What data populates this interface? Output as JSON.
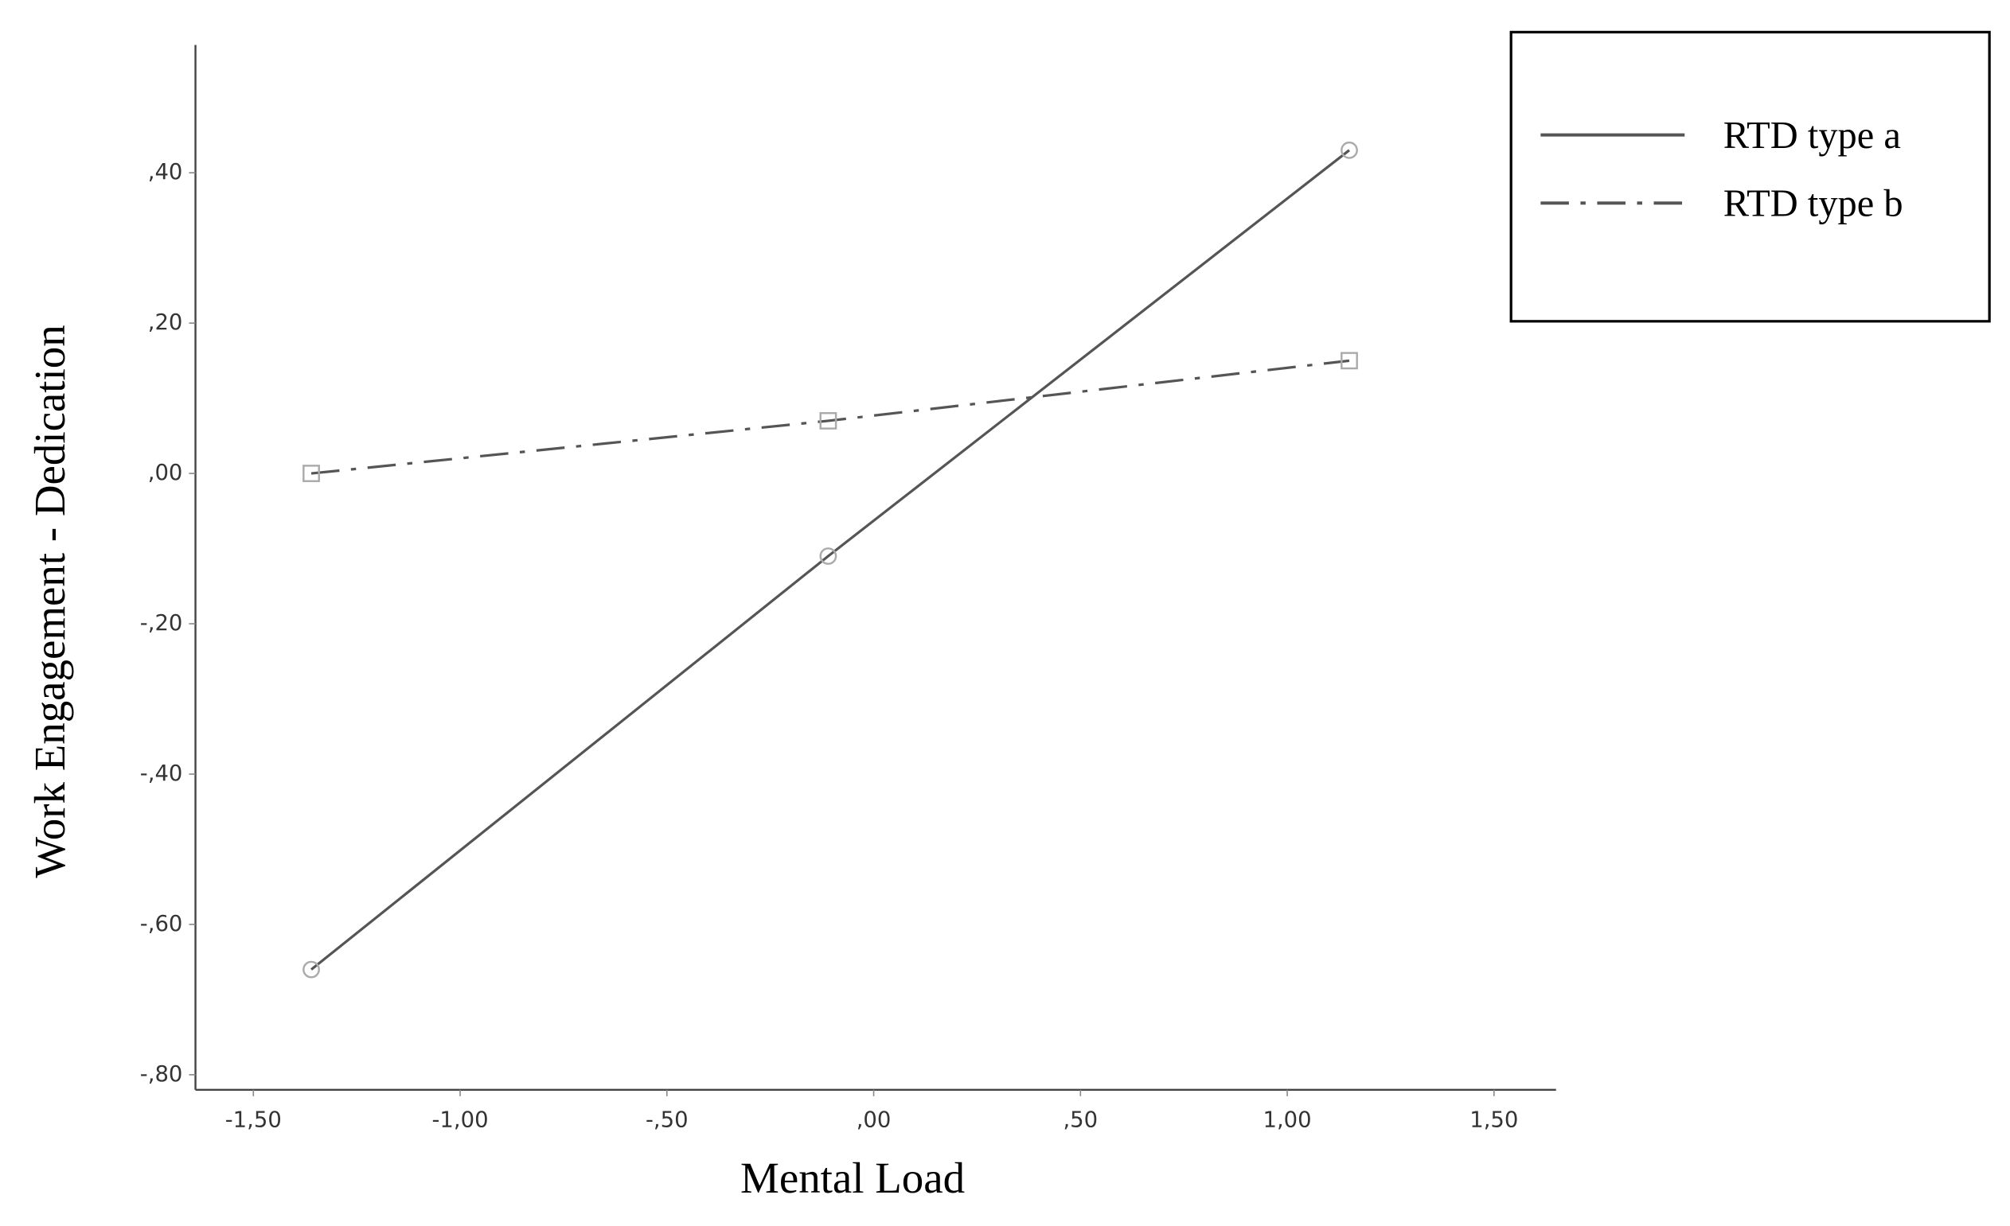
{
  "chart_data": {
    "type": "line",
    "x_label": "Mental Load",
    "y_label": "Work Engagement - Dedication",
    "x": [
      -1.36,
      -0.11,
      1.15
    ],
    "series": [
      {
        "name": "RTD type a",
        "color": "#555555",
        "style": "solid",
        "marker": "circle",
        "values": [
          -0.66,
          -0.11,
          0.43
        ]
      },
      {
        "name": "RTD type b",
        "color": "#555555",
        "style": "dashdot",
        "marker": "square",
        "values": [
          0.0,
          0.07,
          0.15
        ]
      }
    ],
    "xlim": [
      -1.64,
      1.65
    ],
    "ylim": [
      -0.82,
      0.57
    ],
    "xticks": [
      {
        "value": -1.5,
        "label": "-1,50"
      },
      {
        "value": -1.0,
        "label": "-1,00"
      },
      {
        "value": -0.5,
        "label": "-,50"
      },
      {
        "value": 0,
        "label": ",00"
      },
      {
        "value": 0.5,
        "label": ",50"
      },
      {
        "value": 1.0,
        "label": "1,00"
      },
      {
        "value": 1.5,
        "label": "1,50"
      }
    ],
    "yticks": [
      {
        "value": -0.8,
        "label": "-,80"
      },
      {
        "value": -0.6,
        "label": "-,60"
      },
      {
        "value": -0.4,
        "label": "-,40"
      },
      {
        "value": -0.2,
        "label": "-,20"
      },
      {
        "value": 0,
        "label": ",00"
      },
      {
        "value": 0.2,
        "label": ",20"
      },
      {
        "value": 0.4,
        "label": ",40"
      }
    ],
    "legend": "upper right"
  }
}
